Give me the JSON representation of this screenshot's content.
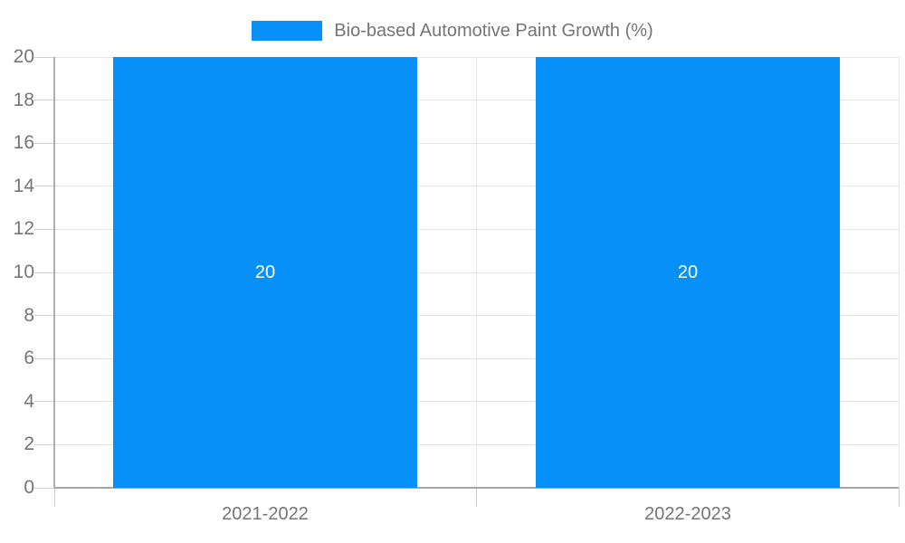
{
  "legend": {
    "label": "Bio-based Automotive Paint Growth (%)"
  },
  "colors": {
    "bar": "#0690f8",
    "axis_text": "#757575",
    "data_label_text": "#ffffff",
    "gridline": "#e6e6e6",
    "tick": "#cfcfcf",
    "axis_line": "#a6a6a6",
    "yaxis_line": "#b0b0b0",
    "background": "#ffffff"
  },
  "chart_data": {
    "type": "bar",
    "categories": [
      "2021-2022",
      "2022-2023"
    ],
    "series": [
      {
        "name": "Bio-based Automotive Paint Growth (%)",
        "values": [
          20,
          20
        ]
      }
    ],
    "data_labels": [
      "20",
      "20"
    ],
    "title": "",
    "xlabel": "",
    "ylabel": "",
    "ylim": [
      0,
      20
    ],
    "yticks": [
      0,
      2,
      4,
      6,
      8,
      10,
      12,
      14,
      16,
      18,
      20
    ],
    "grid": true,
    "legend_position": "top-center"
  }
}
